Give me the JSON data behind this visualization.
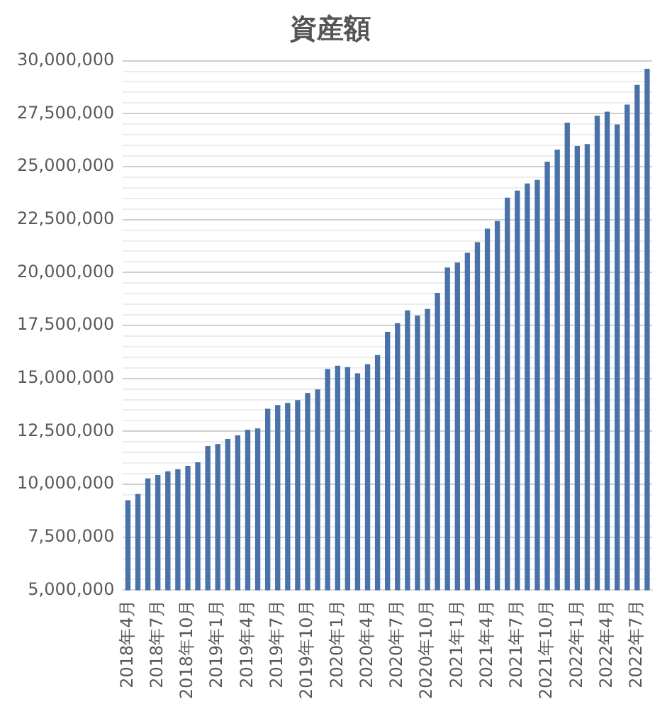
{
  "chart_data": {
    "type": "bar",
    "title": "資産額",
    "categories": [
      "2018年4月",
      null,
      null,
      "2018年7月",
      null,
      null,
      "2018年10月",
      null,
      null,
      "2019年1月",
      null,
      null,
      "2019年4月",
      null,
      null,
      "2019年7月",
      null,
      null,
      "2019年10月",
      null,
      null,
      "2020年1月",
      null,
      null,
      "2020年4月",
      null,
      null,
      "2020年7月",
      null,
      null,
      "2020年10月",
      null,
      null,
      "2021年1月",
      null,
      null,
      "2021年4月",
      null,
      null,
      "2021年7月",
      null,
      null,
      "2021年10月",
      null,
      null,
      "2022年1月",
      null,
      null,
      "2022年4月",
      null,
      null,
      "2022年7月",
      null
    ],
    "values": [
      9250000,
      9540000,
      10280000,
      10440000,
      10610000,
      10710000,
      10870000,
      11040000,
      11810000,
      11900000,
      12140000,
      12310000,
      12570000,
      12640000,
      13570000,
      13740000,
      13840000,
      13980000,
      14310000,
      14480000,
      15440000,
      15600000,
      15530000,
      15240000,
      15670000,
      16100000,
      17200000,
      17610000,
      18210000,
      17970000,
      18280000,
      19040000,
      20240000,
      20470000,
      20930000,
      21430000,
      22070000,
      22430000,
      23530000,
      23870000,
      24200000,
      24370000,
      25230000,
      25800000,
      27070000,
      25970000,
      26060000,
      27400000,
      27590000,
      26990000,
      27930000,
      28860000,
      29620000
    ],
    "color": "#4a72a8",
    "ylim": [
      5000000,
      30000000
    ],
    "yticks": [
      {
        "value": 5000000,
        "label": "5,000,000"
      },
      {
        "value": 5500000,
        "label": null
      },
      {
        "value": 6000000,
        "label": null
      },
      {
        "value": 6500000,
        "label": null
      },
      {
        "value": 7000000,
        "label": null
      },
      {
        "value": 7500000,
        "label": "7,500,000"
      },
      {
        "value": 8000000,
        "label": null
      },
      {
        "value": 8500000,
        "label": null
      },
      {
        "value": 9000000,
        "label": null
      },
      {
        "value": 9500000,
        "label": null
      },
      {
        "value": 10000000,
        "label": "10,000,000"
      },
      {
        "value": 10500000,
        "label": null
      },
      {
        "value": 11000000,
        "label": null
      },
      {
        "value": 11500000,
        "label": null
      },
      {
        "value": 12000000,
        "label": null
      },
      {
        "value": 12500000,
        "label": "12,500,000"
      },
      {
        "value": 13000000,
        "label": null
      },
      {
        "value": 13500000,
        "label": null
      },
      {
        "value": 14000000,
        "label": null
      },
      {
        "value": 14500000,
        "label": null
      },
      {
        "value": 15000000,
        "label": "15,000,000"
      },
      {
        "value": 15500000,
        "label": null
      },
      {
        "value": 16000000,
        "label": null
      },
      {
        "value": 16500000,
        "label": null
      },
      {
        "value": 17000000,
        "label": null
      },
      {
        "value": 17500000,
        "label": "17,500,000"
      },
      {
        "value": 18000000,
        "label": null
      },
      {
        "value": 18500000,
        "label": null
      },
      {
        "value": 19000000,
        "label": null
      },
      {
        "value": 19500000,
        "label": null
      },
      {
        "value": 20000000,
        "label": "20,000,000"
      },
      {
        "value": 20500000,
        "label": null
      },
      {
        "value": 21000000,
        "label": null
      },
      {
        "value": 21500000,
        "label": null
      },
      {
        "value": 22000000,
        "label": null
      },
      {
        "value": 22500000,
        "label": "22,500,000"
      },
      {
        "value": 23000000,
        "label": null
      },
      {
        "value": 23500000,
        "label": null
      },
      {
        "value": 24000000,
        "label": null
      },
      {
        "value": 24500000,
        "label": null
      },
      {
        "value": 25000000,
        "label": "25,000,000"
      },
      {
        "value": 25500000,
        "label": null
      },
      {
        "value": 26000000,
        "label": null
      },
      {
        "value": 26500000,
        "label": null
      },
      {
        "value": 27000000,
        "label": null
      },
      {
        "value": 27500000,
        "label": "27,500,000"
      },
      {
        "value": 28000000,
        "label": null
      },
      {
        "value": 28500000,
        "label": null
      },
      {
        "value": 29000000,
        "label": null
      },
      {
        "value": 29500000,
        "label": null
      },
      {
        "value": 30000000,
        "label": "30,000,000"
      }
    ],
    "grid": "y"
  }
}
